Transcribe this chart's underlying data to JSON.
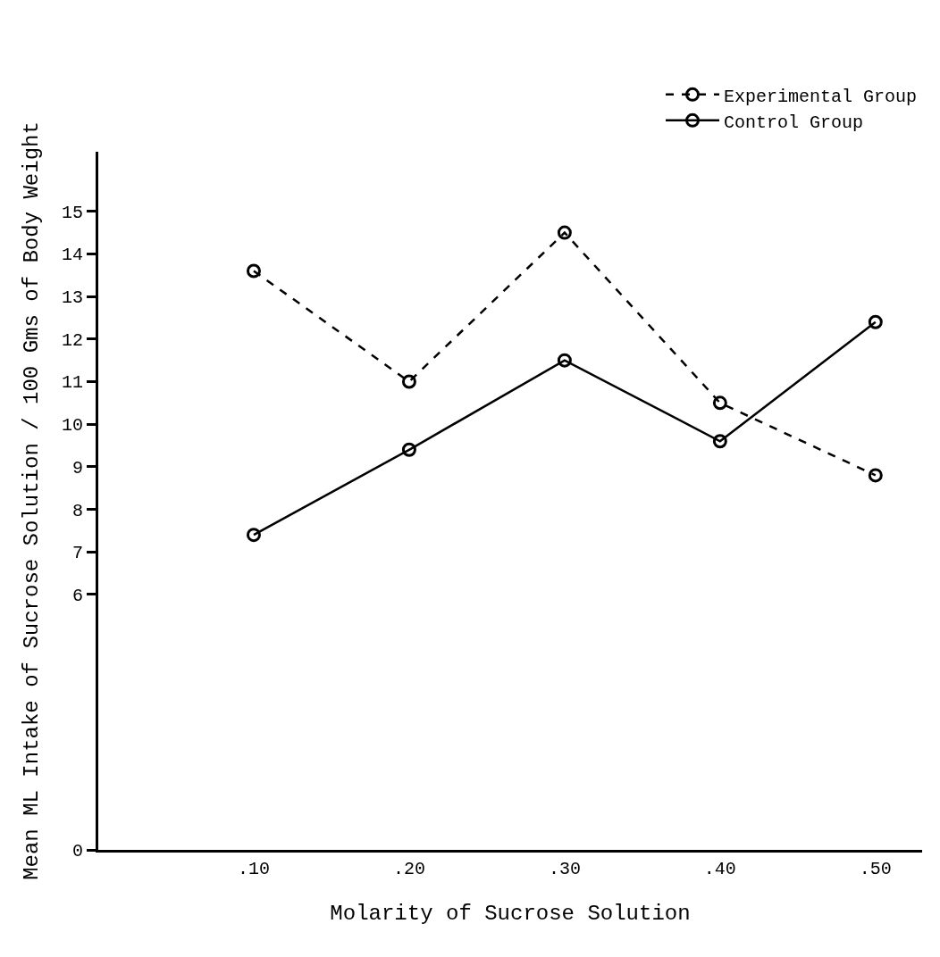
{
  "chart_data": {
    "type": "line",
    "xlabel": "Molarity of Sucrose Solution",
    "ylabel": "Mean ML Intake of Sucrose Solution / 100 Gms of Body Weight",
    "x": [
      0.1,
      0.2,
      0.3,
      0.4,
      0.5
    ],
    "series": [
      {
        "name": "Experimental Group",
        "color": "#000000",
        "line_style": "dashed",
        "values": [
          13.6,
          11.0,
          14.5,
          10.5,
          8.8
        ]
      },
      {
        "name": "Control Group",
        "color": "#000000",
        "line_style": "solid",
        "values": [
          7.4,
          9.4,
          11.5,
          9.6,
          12.4
        ]
      }
    ],
    "xlim": [
      0,
      0.53
    ],
    "xticks": [
      {
        "value": 0.1,
        "label": ".10"
      },
      {
        "value": 0.2,
        "label": ".20"
      },
      {
        "value": 0.3,
        "label": ".30"
      },
      {
        "value": 0.4,
        "label": ".40"
      },
      {
        "value": 0.5,
        "label": ".50"
      }
    ],
    "ylim": [
      0,
      16.4
    ],
    "yticks": [
      0,
      6,
      7,
      8,
      9,
      10,
      11,
      12,
      13,
      14,
      15
    ],
    "marker": "circle",
    "legend": "top right"
  }
}
